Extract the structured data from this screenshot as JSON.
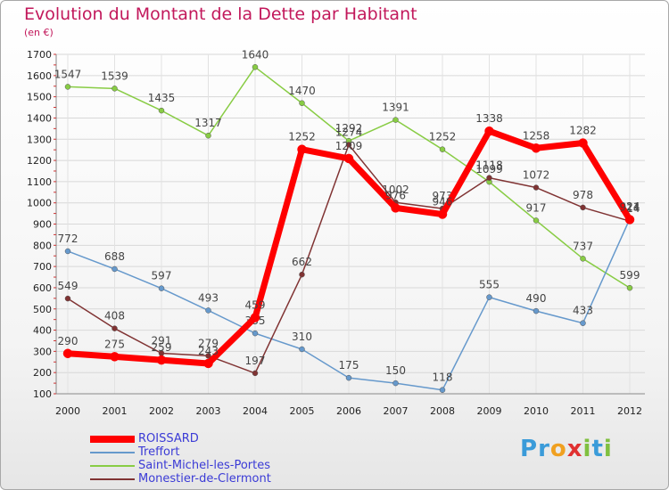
{
  "chart_data": {
    "type": "line",
    "title": "Evolution du Montant de la Dette par Habitant",
    "subtitle": "(en €)",
    "x": [
      "2000",
      "2001",
      "2002",
      "2003",
      "2004",
      "2005",
      "2006",
      "2007",
      "2008",
      "2009",
      "2010",
      "2011",
      "2012"
    ],
    "ylim": [
      100,
      1700
    ],
    "yticks": [
      100,
      200,
      300,
      400,
      500,
      600,
      700,
      800,
      900,
      1000,
      1100,
      1200,
      1300,
      1400,
      1500,
      1600,
      1700
    ],
    "grid": true,
    "legend_position": "bottom-left",
    "series": [
      {
        "name": "ROISSARD",
        "color": "#ff0000",
        "values": [
          290,
          275,
          259,
          243,
          459,
          1252,
          1209,
          976,
          946,
          1338,
          1258,
          1282,
          921
        ]
      },
      {
        "name": "Treffort",
        "color": "#6699cc",
        "values": [
          772,
          688,
          597,
          null,
          385,
          310,
          175,
          150,
          118,
          555,
          490,
          433,
          924
        ]
      },
      {
        "name": "Saint-Michel-les-Portes",
        "color": "#88cc44",
        "values": [
          1547,
          1539,
          1435,
          1317,
          1640,
          1470,
          1292,
          1391,
          1252,
          1099,
          917,
          737,
          599
        ]
      },
      {
        "name": "Monestier-de-Clermont",
        "color": "#803333",
        "values": [
          549,
          408,
          291,
          279,
          197,
          662,
          1274,
          1002,
          973,
          1118,
          1072,
          978,
          914
        ]
      }
    ],
    "labels_text": {
      "ROISSARD": [
        "290",
        "275",
        "259",
        "243",
        "459",
        "1252",
        "1209",
        "976",
        "946",
        "1338",
        "1258",
        "1282",
        "921"
      ],
      "Treffort": [
        "772",
        "688",
        "597",
        "493",
        "385",
        "310",
        "175",
        "150",
        "118",
        "555",
        "490",
        "433",
        "924"
      ],
      "Saint-Michel-les-Portes": [
        "1547",
        "1539",
        "1435",
        "1317",
        "1640",
        "1470",
        "1292",
        "1391",
        "1252",
        "1099",
        "917",
        "737",
        "599"
      ],
      "Monestier-de-Clermont": [
        "549",
        "408",
        "291",
        "279",
        "197",
        "662",
        "1274",
        "1002",
        "973",
        "1118",
        "1072",
        "978",
        "914"
      ]
    }
  },
  "legend": {
    "items": [
      {
        "label": "ROISSARD",
        "color": "#ff0000"
      },
      {
        "label": "Treffort",
        "color": "#6699cc"
      },
      {
        "label": "Saint-Michel-les-Portes",
        "color": "#88cc44"
      },
      {
        "label": "Monestier-de-Clermont",
        "color": "#803333"
      }
    ]
  },
  "logo": {
    "text": "Proxiti",
    "letters": [
      "P",
      "r",
      "o",
      "x",
      "i",
      "t",
      "i"
    ],
    "colors": [
      "#3a9bd9",
      "#3a9bd9",
      "#f0a020",
      "#e03030",
      "#80c040",
      "#3a9bd9",
      "#80c040"
    ]
  }
}
